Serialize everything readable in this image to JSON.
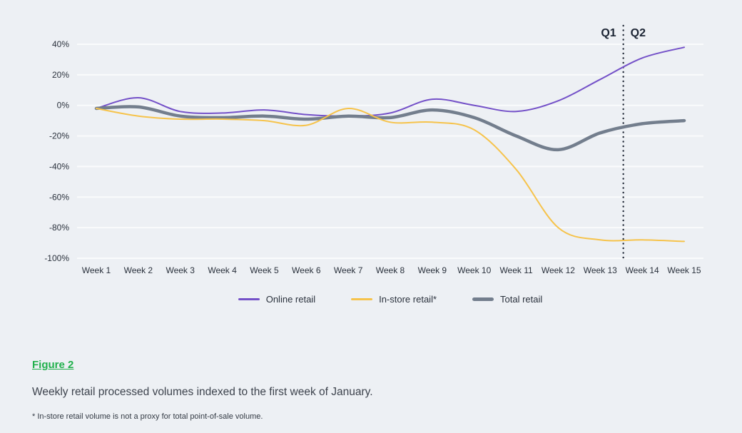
{
  "colors": {
    "background": "#edf0f4",
    "gridline": "#fafbfc",
    "axis_text": "#2a313c",
    "quarter_text": "#1b2433",
    "accent_green": "#21b04c",
    "caption_text": "#3d434d",
    "footnote_text": "#333a44"
  },
  "chart_data": {
    "type": "line",
    "title": "",
    "categories": [
      "Week 1",
      "Week 2",
      "Week 3",
      "Week 4",
      "Week 5",
      "Week 6",
      "Week 7",
      "Week 8",
      "Week 9",
      "Week 10",
      "Week 11",
      "Week 12",
      "Week 13",
      "Week 14",
      "Week 15"
    ],
    "series": [
      {
        "name": "Online retail",
        "color": "#7451c8",
        "stroke_width": 2,
        "z": 1,
        "values": [
          -2,
          5,
          -4,
          -5,
          -3,
          -6,
          -7,
          -5,
          4,
          0,
          -4,
          3,
          17,
          31,
          38
        ]
      },
      {
        "name": "In-store retail*",
        "color": "#f6c34b",
        "stroke_width": 2,
        "z": 3,
        "values": [
          -2,
          -7,
          -9,
          -9,
          -10,
          -13,
          -2,
          -11,
          -11,
          -16,
          -42,
          -80,
          -88,
          -88,
          -89
        ]
      },
      {
        "name": "Total retail",
        "color": "#737e8d",
        "stroke_width": 4.5,
        "z": 2,
        "values": [
          -2,
          -1,
          -7,
          -8,
          -7,
          -9,
          -7,
          -8,
          -3,
          -8,
          -20,
          -29,
          -18,
          -12,
          -10
        ]
      }
    ],
    "ylim": [
      -100,
      40
    ],
    "yticks": [
      40,
      20,
      0,
      -20,
      -40,
      -60,
      -80,
      -100
    ],
    "ytick_suffix": "%",
    "grid": "horizontal",
    "legend_position": "bottom",
    "annotations": {
      "divider": {
        "between": [
          "Week 13",
          "Week 14"
        ],
        "offset": 0.55,
        "label_left": "Q1",
        "label_right": "Q2",
        "color": "#222a38",
        "style": "dotted"
      }
    }
  },
  "figure": {
    "label": "Figure 2",
    "caption": "Weekly retail processed volumes indexed to the first week of January.",
    "footnote": "* In-store retail volume is not a proxy for total point-of-sale volume."
  }
}
